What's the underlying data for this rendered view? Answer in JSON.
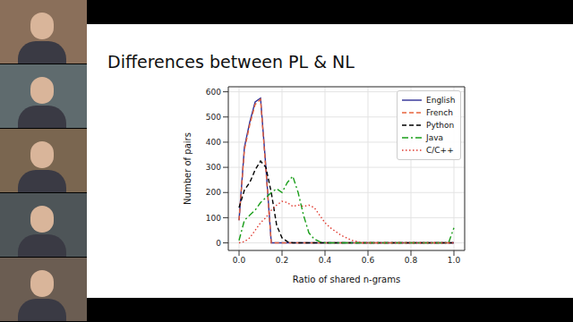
{
  "chart_data": {
    "type": "line",
    "title": "Differences between PL & NL",
    "x_label": "Ratio of shared n-grams",
    "y_label": "Number of pairs",
    "x": [
      0,
      0.025,
      0.05,
      0.075,
      0.1,
      0.125,
      0.15,
      0.175,
      0.2,
      0.225,
      0.25,
      0.275,
      0.3,
      0.325,
      0.35,
      0.375,
      0.4,
      0.425,
      0.45,
      0.475,
      0.5,
      0.525,
      0.55,
      0.575,
      0.6,
      0.625,
      0.65,
      0.675,
      0.7,
      0.725,
      0.75,
      0.775,
      0.8,
      0.825,
      0.85,
      0.875,
      0.9,
      0.925,
      0.95,
      0.975,
      1.0
    ],
    "series": [
      {
        "name": "English",
        "color": "#2e2e96",
        "line_style": "solid",
        "values": [
          90,
          380,
          480,
          560,
          575,
          300,
          0,
          0,
          0,
          0,
          0,
          0,
          0,
          0,
          0,
          0,
          0,
          0,
          0,
          0,
          0,
          0,
          0,
          0,
          0,
          0,
          0,
          0,
          0,
          0,
          0,
          0,
          0,
          0,
          0,
          0,
          0,
          0,
          0,
          0,
          0
        ]
      },
      {
        "name": "French",
        "color": "#e8643c",
        "line_style": "dashed",
        "values": [
          90,
          370,
          470,
          550,
          570,
          290,
          0,
          0,
          0,
          0,
          0,
          0,
          0,
          0,
          0,
          0,
          0,
          0,
          0,
          0,
          0,
          0,
          0,
          0,
          0,
          0,
          0,
          0,
          0,
          0,
          0,
          0,
          0,
          0,
          0,
          0,
          0,
          0,
          0,
          0,
          0
        ]
      },
      {
        "name": "Python",
        "color": "#000000",
        "line_style": "dashed",
        "values": [
          140,
          210,
          240,
          290,
          325,
          300,
          200,
          70,
          20,
          5,
          0,
          0,
          0,
          0,
          0,
          0,
          0,
          0,
          0,
          0,
          0,
          0,
          0,
          0,
          0,
          0,
          0,
          0,
          0,
          0,
          0,
          0,
          0,
          0,
          0,
          0,
          0,
          0,
          0,
          0,
          0
        ]
      },
      {
        "name": "Java",
        "color": "#1a9e1a",
        "line_style": "dashdot",
        "values": [
          10,
          90,
          110,
          130,
          160,
          180,
          200,
          215,
          200,
          240,
          265,
          200,
          110,
          40,
          15,
          5,
          0,
          0,
          0,
          0,
          0,
          0,
          0,
          0,
          0,
          0,
          0,
          0,
          0,
          0,
          0,
          0,
          0,
          0,
          0,
          0,
          0,
          0,
          0,
          0,
          60
        ]
      },
      {
        "name": "C/C++",
        "color": "#e03c31",
        "line_style": "dotted",
        "values": [
          0,
          5,
          20,
          50,
          80,
          100,
          130,
          150,
          165,
          160,
          145,
          150,
          145,
          150,
          140,
          110,
          80,
          60,
          45,
          30,
          20,
          10,
          5,
          0,
          0,
          0,
          0,
          0,
          0,
          0,
          0,
          0,
          0,
          0,
          0,
          0,
          0,
          0,
          0,
          0,
          0
        ]
      }
    ],
    "xlim": [
      -0.05,
      1.05
    ],
    "ylim": [
      -30,
      620
    ],
    "xticks": [
      {
        "value": 0,
        "label": "0.0"
      },
      {
        "value": 0.2,
        "label": "0.2"
      },
      {
        "value": 0.4,
        "label": "0.4"
      },
      {
        "value": 0.6,
        "label": "0.6"
      },
      {
        "value": 0.8,
        "label": "0.8"
      },
      {
        "value": 1.0,
        "label": "1.0"
      }
    ],
    "yticks": [
      0,
      100,
      200,
      300,
      400,
      500,
      600
    ],
    "grid": true,
    "legend": "upper right"
  }
}
